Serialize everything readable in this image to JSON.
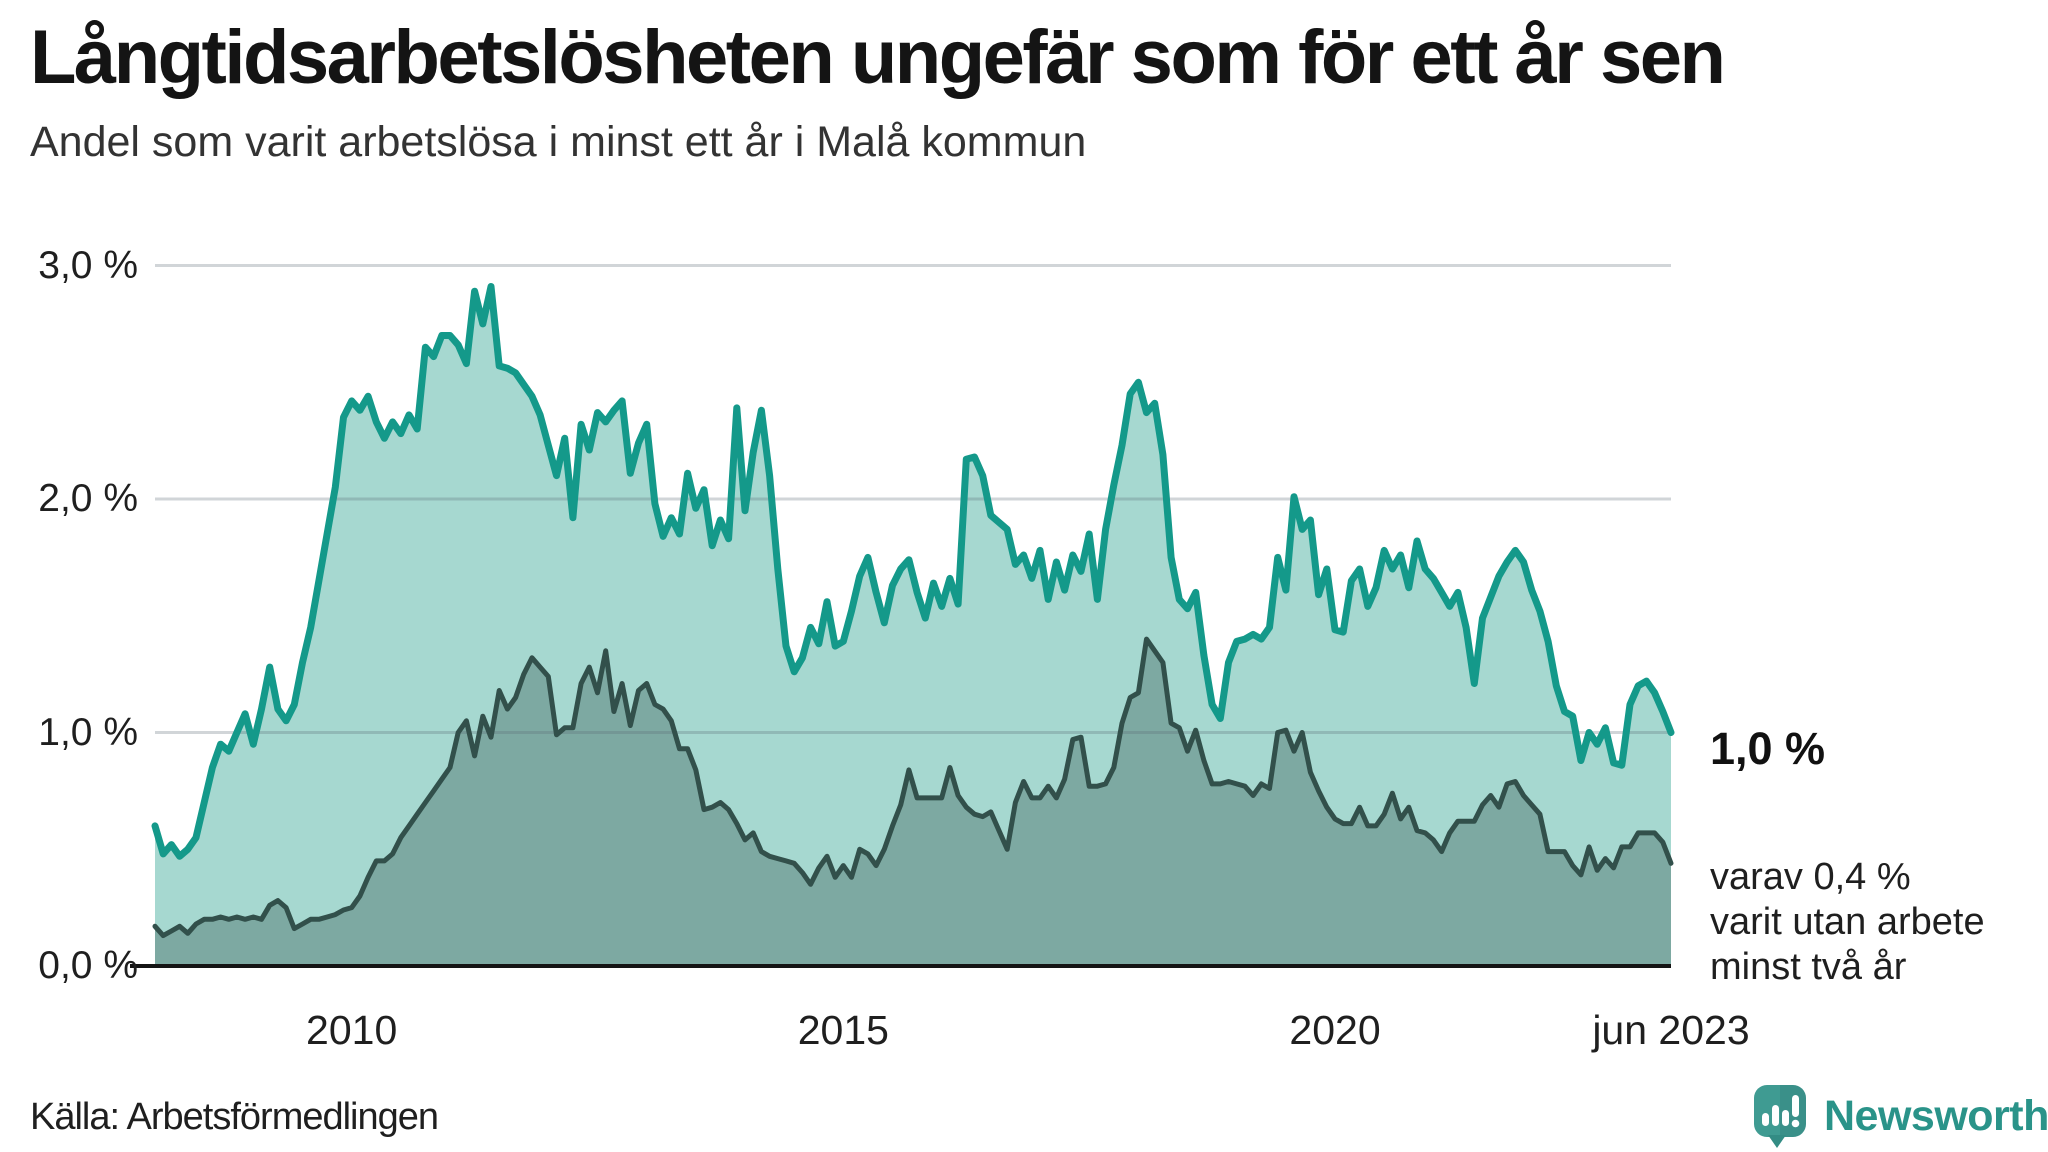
{
  "header": {
    "title": "Långtidsarbetslösheten ungefär som för ett år sen",
    "subtitle": "Andel som varit arbetslösa i minst ett år i Malå kommun"
  },
  "chart_data": {
    "type": "area",
    "title": "Långtidsarbetslösheten ungefär som för ett år sen",
    "subtitle": "Andel som varit arbetslösa i minst ett år i Malå kommun",
    "unit": "%",
    "x_start": "2008-01",
    "x_end": "2023-06",
    "x_frequency": "monthly",
    "ylim": [
      0,
      3.2
    ],
    "grid": "horizontal",
    "legend_position": "none",
    "colors": {
      "grid": "rgba(90,105,115,0.28)",
      "axis": "#141414",
      "accent_teal": "#14998a",
      "accent_dark": "#32504b"
    },
    "y_ticks": [
      {
        "label": "0,0 %",
        "value": 0
      },
      {
        "label": "1,0 %",
        "value": 1
      },
      {
        "label": "2,0 %",
        "value": 2
      },
      {
        "label": "3,0 %",
        "value": 3
      }
    ],
    "x_ticks": [
      {
        "label": "2010",
        "month_index": 24
      },
      {
        "label": "2015",
        "month_index": 84
      },
      {
        "label": "2020",
        "month_index": 144
      },
      {
        "label": "jun 2023",
        "month_index": 185
      }
    ],
    "series": [
      {
        "name": "Arbetslösa minst ett år",
        "color": "#14998a",
        "fill": "#a6d8d0",
        "end_value": 1.0,
        "values": [
          0.6,
          0.48,
          0.52,
          0.47,
          0.5,
          0.55,
          0.7,
          0.85,
          0.95,
          0.92,
          1.0,
          1.08,
          0.95,
          1.1,
          1.28,
          1.1,
          1.05,
          1.12,
          1.3,
          1.45,
          1.65,
          1.85,
          2.05,
          2.35,
          2.42,
          2.38,
          2.44,
          2.33,
          2.26,
          2.33,
          2.28,
          2.36,
          2.3,
          2.65,
          2.61,
          2.7,
          2.7,
          2.66,
          2.58,
          2.89,
          2.75,
          2.91,
          2.57,
          2.56,
          2.54,
          2.49,
          2.44,
          2.36,
          2.23,
          2.1,
          2.26,
          1.92,
          2.32,
          2.21,
          2.37,
          2.33,
          2.38,
          2.42,
          2.11,
          2.24,
          2.32,
          1.98,
          1.84,
          1.92,
          1.85,
          2.11,
          1.96,
          2.04,
          1.8,
          1.91,
          1.83,
          2.39,
          1.95,
          2.2,
          2.38,
          2.1,
          1.7,
          1.37,
          1.26,
          1.32,
          1.45,
          1.38,
          1.56,
          1.37,
          1.39,
          1.52,
          1.67,
          1.75,
          1.6,
          1.47,
          1.63,
          1.7,
          1.74,
          1.6,
          1.49,
          1.64,
          1.54,
          1.66,
          1.55,
          2.17,
          2.18,
          2.1,
          1.93,
          1.9,
          1.87,
          1.72,
          1.76,
          1.66,
          1.78,
          1.57,
          1.73,
          1.61,
          1.76,
          1.69,
          1.85,
          1.57,
          1.87,
          2.06,
          2.23,
          2.45,
          2.5,
          2.37,
          2.41,
          2.19,
          1.75,
          1.57,
          1.53,
          1.6,
          1.33,
          1.12,
          1.06,
          1.3,
          1.39,
          1.4,
          1.42,
          1.4,
          1.45,
          1.75,
          1.61,
          2.01,
          1.87,
          1.91,
          1.59,
          1.7,
          1.44,
          1.43,
          1.65,
          1.7,
          1.54,
          1.62,
          1.78,
          1.7,
          1.76,
          1.62,
          1.82,
          1.7,
          1.66,
          1.6,
          1.54,
          1.6,
          1.45,
          1.21,
          1.49,
          1.58,
          1.67,
          1.73,
          1.78,
          1.73,
          1.61,
          1.52,
          1.39,
          1.2,
          1.09,
          1.07,
          0.88,
          1.0,
          0.95,
          1.02,
          0.87,
          0.86,
          1.12,
          1.2,
          1.22,
          1.17,
          1.09,
          1.0
        ]
      },
      {
        "name": "Arbetslösa minst två år",
        "color": "#32504b",
        "fill": "#7da9a2",
        "end_value": 0.4,
        "values": [
          0.17,
          0.13,
          0.15,
          0.17,
          0.14,
          0.18,
          0.2,
          0.2,
          0.21,
          0.2,
          0.21,
          0.2,
          0.21,
          0.2,
          0.26,
          0.28,
          0.25,
          0.16,
          0.18,
          0.2,
          0.2,
          0.21,
          0.22,
          0.24,
          0.25,
          0.3,
          0.38,
          0.45,
          0.45,
          0.48,
          0.55,
          0.6,
          0.65,
          0.7,
          0.75,
          0.8,
          0.85,
          1.0,
          1.05,
          0.9,
          1.07,
          0.98,
          1.18,
          1.1,
          1.15,
          1.25,
          1.32,
          1.28,
          1.24,
          0.99,
          1.02,
          1.02,
          1.21,
          1.28,
          1.17,
          1.35,
          1.09,
          1.21,
          1.03,
          1.18,
          1.21,
          1.12,
          1.1,
          1.05,
          0.93,
          0.93,
          0.84,
          0.67,
          0.68,
          0.7,
          0.67,
          0.61,
          0.54,
          0.57,
          0.49,
          0.47,
          0.46,
          0.45,
          0.44,
          0.4,
          0.35,
          0.42,
          0.47,
          0.38,
          0.43,
          0.38,
          0.5,
          0.48,
          0.43,
          0.5,
          0.6,
          0.69,
          0.84,
          0.72,
          0.72,
          0.72,
          0.72,
          0.85,
          0.73,
          0.68,
          0.65,
          0.64,
          0.66,
          0.58,
          0.5,
          0.7,
          0.79,
          0.72,
          0.72,
          0.77,
          0.72,
          0.8,
          0.97,
          0.98,
          0.77,
          0.77,
          0.78,
          0.85,
          1.04,
          1.15,
          1.17,
          1.4,
          1.35,
          1.3,
          1.04,
          1.02,
          0.92,
          1.01,
          0.88,
          0.78,
          0.78,
          0.79,
          0.78,
          0.77,
          0.73,
          0.78,
          0.76,
          1.0,
          1.01,
          0.92,
          1.0,
          0.83,
          0.75,
          0.68,
          0.63,
          0.61,
          0.61,
          0.68,
          0.6,
          0.6,
          0.65,
          0.74,
          0.63,
          0.68,
          0.58,
          0.57,
          0.54,
          0.49,
          0.57,
          0.62,
          0.62,
          0.62,
          0.69,
          0.73,
          0.68,
          0.78,
          0.79,
          0.73,
          0.69,
          0.65,
          0.49,
          0.49,
          0.49,
          0.43,
          0.39,
          0.51,
          0.41,
          0.46,
          0.42,
          0.51,
          0.51,
          0.57,
          0.57,
          0.57,
          0.53,
          0.44
        ]
      }
    ],
    "annotations": {
      "end_value_main": "1,0 %",
      "end_note_lines": [
        "varav 0,4 %",
        "varit utan arbete",
        "minst två år"
      ]
    }
  },
  "footer": {
    "source": "Källa: Arbetsförmedlingen"
  },
  "brand": {
    "name": "Newsworthy",
    "icon": "newsworthy-speech-bubble-chart-icon",
    "color": "#2a9389"
  }
}
